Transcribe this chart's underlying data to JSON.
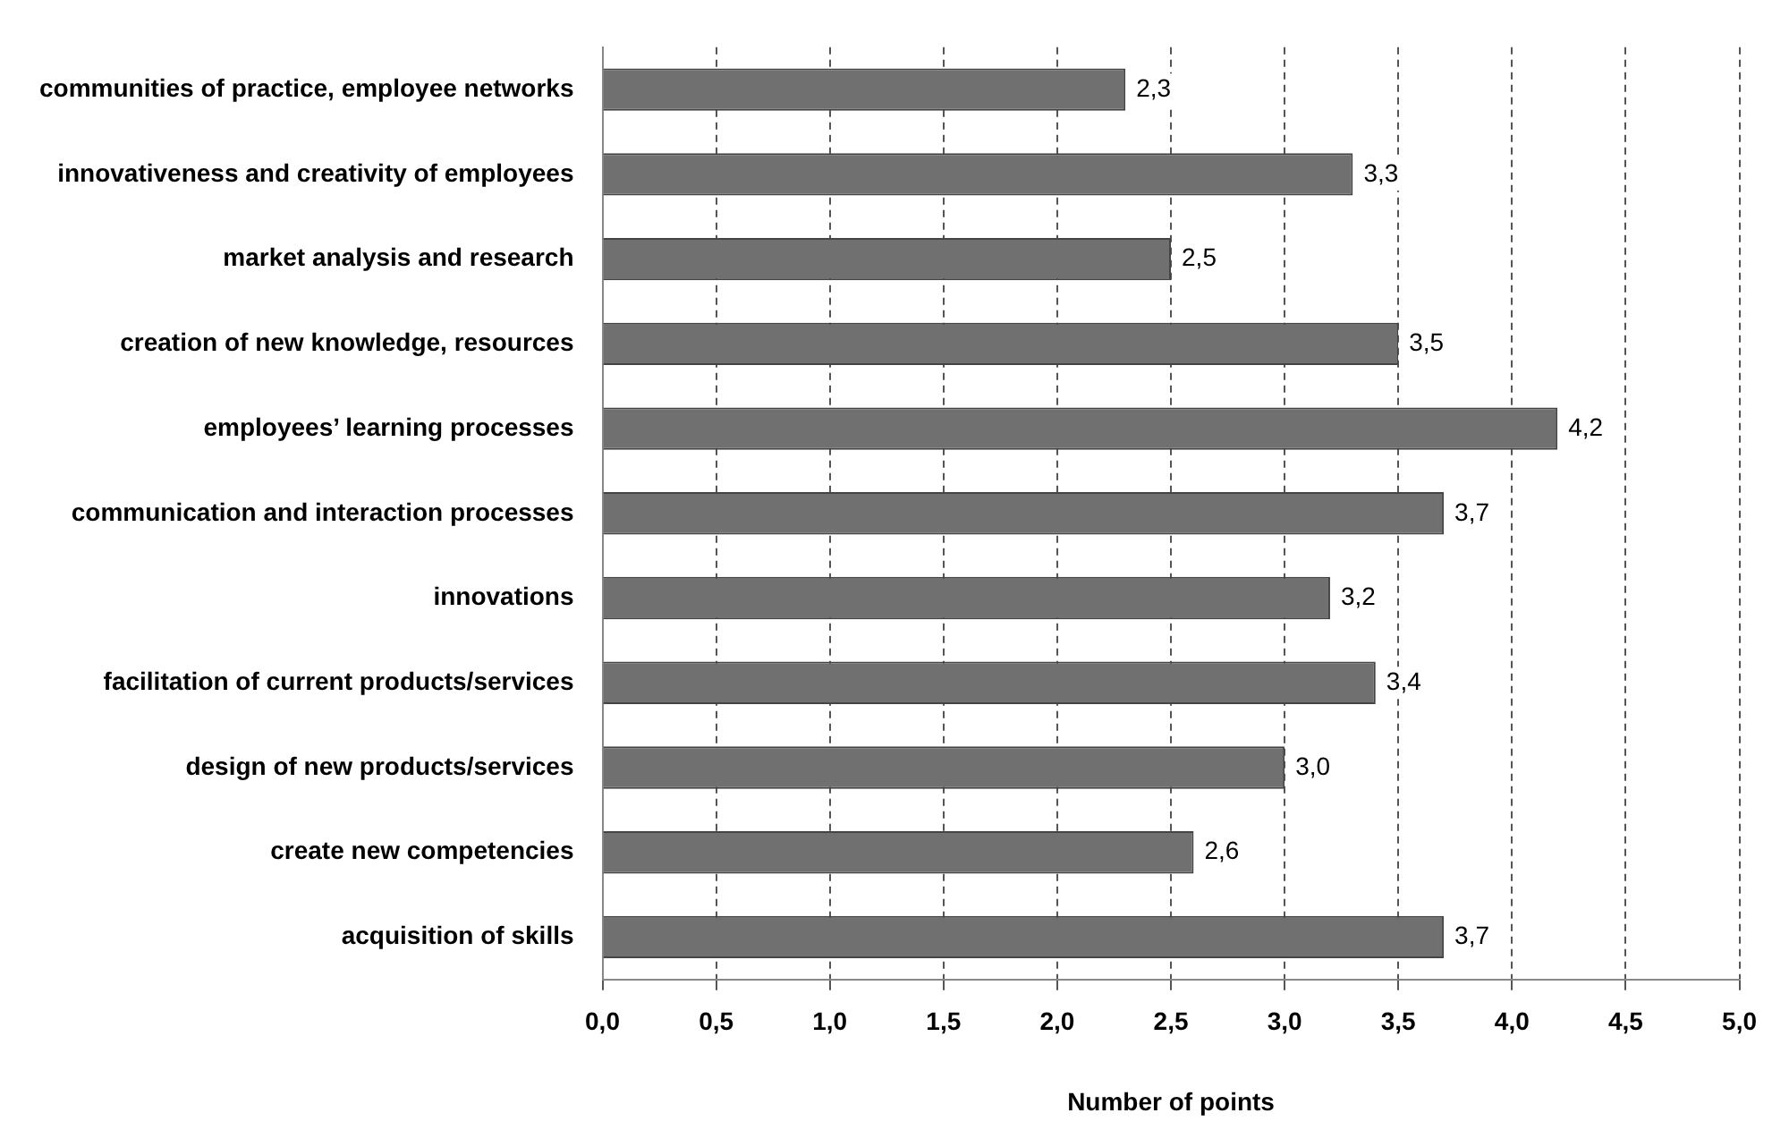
{
  "chart_data": {
    "type": "bar",
    "orientation": "horizontal",
    "xlabel": "Number of points",
    "categories": [
      "communities of practice, employee networks",
      "innovativeness and creativity of employees",
      "market analysis and research",
      "creation of new knowledge, resources",
      "employees’ learning processes",
      "communication and interaction processes",
      "innovations",
      "facilitation of current products/services",
      "design of new products/services",
      "create new competencies",
      "acquisition of skills"
    ],
    "values": [
      2.3,
      3.3,
      2.5,
      3.5,
      4.2,
      3.7,
      3.2,
      3.4,
      3.0,
      2.6,
      3.7
    ],
    "value_labels": [
      "2,3",
      "3,3",
      "2,5",
      "3,5",
      "4,2",
      "3,7",
      "3,2",
      "3,4",
      "3,0",
      "2,6",
      "3,7"
    ],
    "color": "#707070",
    "xlim": [
      0,
      5
    ],
    "xticks": [
      {
        "value": 0,
        "label": "0,0"
      },
      {
        "value": 0.5,
        "label": "0,5"
      },
      {
        "value": 1,
        "label": "1,0"
      },
      {
        "value": 1.5,
        "label": "1,5"
      },
      {
        "value": 2,
        "label": "2,0"
      },
      {
        "value": 2.5,
        "label": "2,5"
      },
      {
        "value": 3,
        "label": "3,0"
      },
      {
        "value": 3.5,
        "label": "3,5"
      },
      {
        "value": 4,
        "label": "4,0"
      },
      {
        "value": 4.5,
        "label": "4,5"
      },
      {
        "value": 5,
        "label": "5,0"
      }
    ],
    "grid": "x",
    "legend": false
  }
}
